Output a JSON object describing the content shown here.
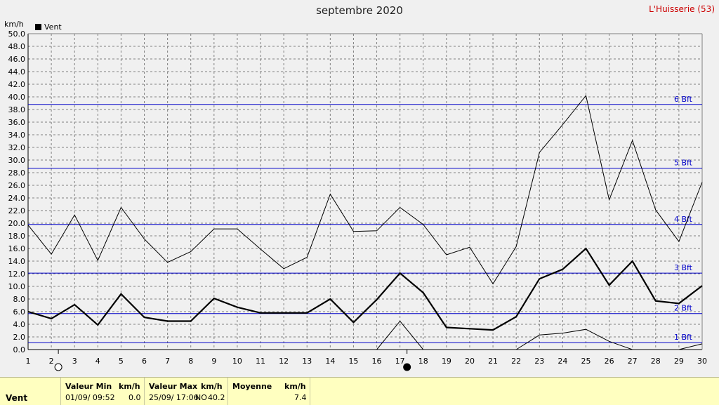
{
  "title": "septembre 2020",
  "station": "L'Huisserie (53)",
  "unit_label": "km/h",
  "legend_label": "Vent",
  "chart_data": {
    "type": "line",
    "title": "septembre 2020",
    "ylabel": "km/h",
    "xlim": [
      1,
      30
    ],
    "ylim": [
      0,
      50
    ],
    "y_tick_step": 2,
    "x": [
      1,
      2,
      3,
      4,
      5,
      6,
      7,
      8,
      9,
      10,
      11,
      12,
      13,
      14,
      15,
      16,
      17,
      18,
      19,
      20,
      21,
      22,
      23,
      24,
      25,
      26,
      27,
      28,
      29,
      30
    ],
    "series": [
      {
        "name": "Vent",
        "role": "max",
        "values": [
          19.7,
          15.1,
          21.3,
          14.1,
          22.5,
          17.5,
          13.8,
          15.5,
          19.1,
          19.1,
          15.9,
          12.8,
          14.6,
          24.6,
          18.7,
          18.8,
          22.5,
          19.8,
          15.0,
          16.2,
          10.4,
          16.3,
          31.2,
          35.6,
          40.2,
          23.7,
          33.1,
          22.1,
          17.1,
          26.5
        ]
      },
      {
        "name": "Vent",
        "role": "mean",
        "values": [
          6.0,
          4.9,
          7.1,
          3.9,
          8.8,
          5.1,
          4.5,
          4.5,
          8.1,
          6.7,
          5.8,
          5.8,
          5.8,
          8.0,
          4.3,
          7.9,
          12.1,
          9.0,
          3.5,
          3.3,
          3.1,
          5.2,
          11.2,
          12.7,
          16.0,
          10.2,
          14.0,
          7.7,
          7.3,
          10.1
        ]
      },
      {
        "name": "Vent",
        "role": "min",
        "x": [
          16,
          17,
          18,
          22,
          23,
          24,
          25,
          26,
          27,
          29,
          30
        ],
        "values": [
          0.0,
          4.5,
          0.0,
          0.0,
          2.3,
          2.6,
          3.2,
          1.3,
          0.0,
          0.0,
          0.9
        ]
      }
    ],
    "beaufort_lines": [
      {
        "label": "1 Bft",
        "value": 1.1
      },
      {
        "label": "2 Bft",
        "value": 5.7
      },
      {
        "label": "3 Bft",
        "value": 12.1
      },
      {
        "label": "4 Bft",
        "value": 19.8
      },
      {
        "label": "5 Bft",
        "value": 28.7
      },
      {
        "label": "6 Bft",
        "value": 38.8
      }
    ],
    "moon_phases": [
      {
        "day": 2,
        "phase": "full"
      },
      {
        "day": 17,
        "phase": "new"
      }
    ],
    "grid": true,
    "legend_position": "top-left",
    "colors": {
      "line": "#000000",
      "beaufort": "#0000c8",
      "grid": "#808080",
      "background": "#f0f0f0"
    }
  },
  "stats": {
    "row_label": "Vent",
    "min_header": "Valeur Min",
    "min_unit": "km/h",
    "min_date": "01/09/  09:52",
    "min_value": "0.0",
    "max_header": "Valeur Max",
    "max_unit": "km/h",
    "max_date": "25/09/  17:06",
    "max_dir": "NO",
    "max_value": "40.2",
    "mean_header": "Moyenne",
    "mean_unit": "km/h",
    "mean_value": "7.4"
  }
}
